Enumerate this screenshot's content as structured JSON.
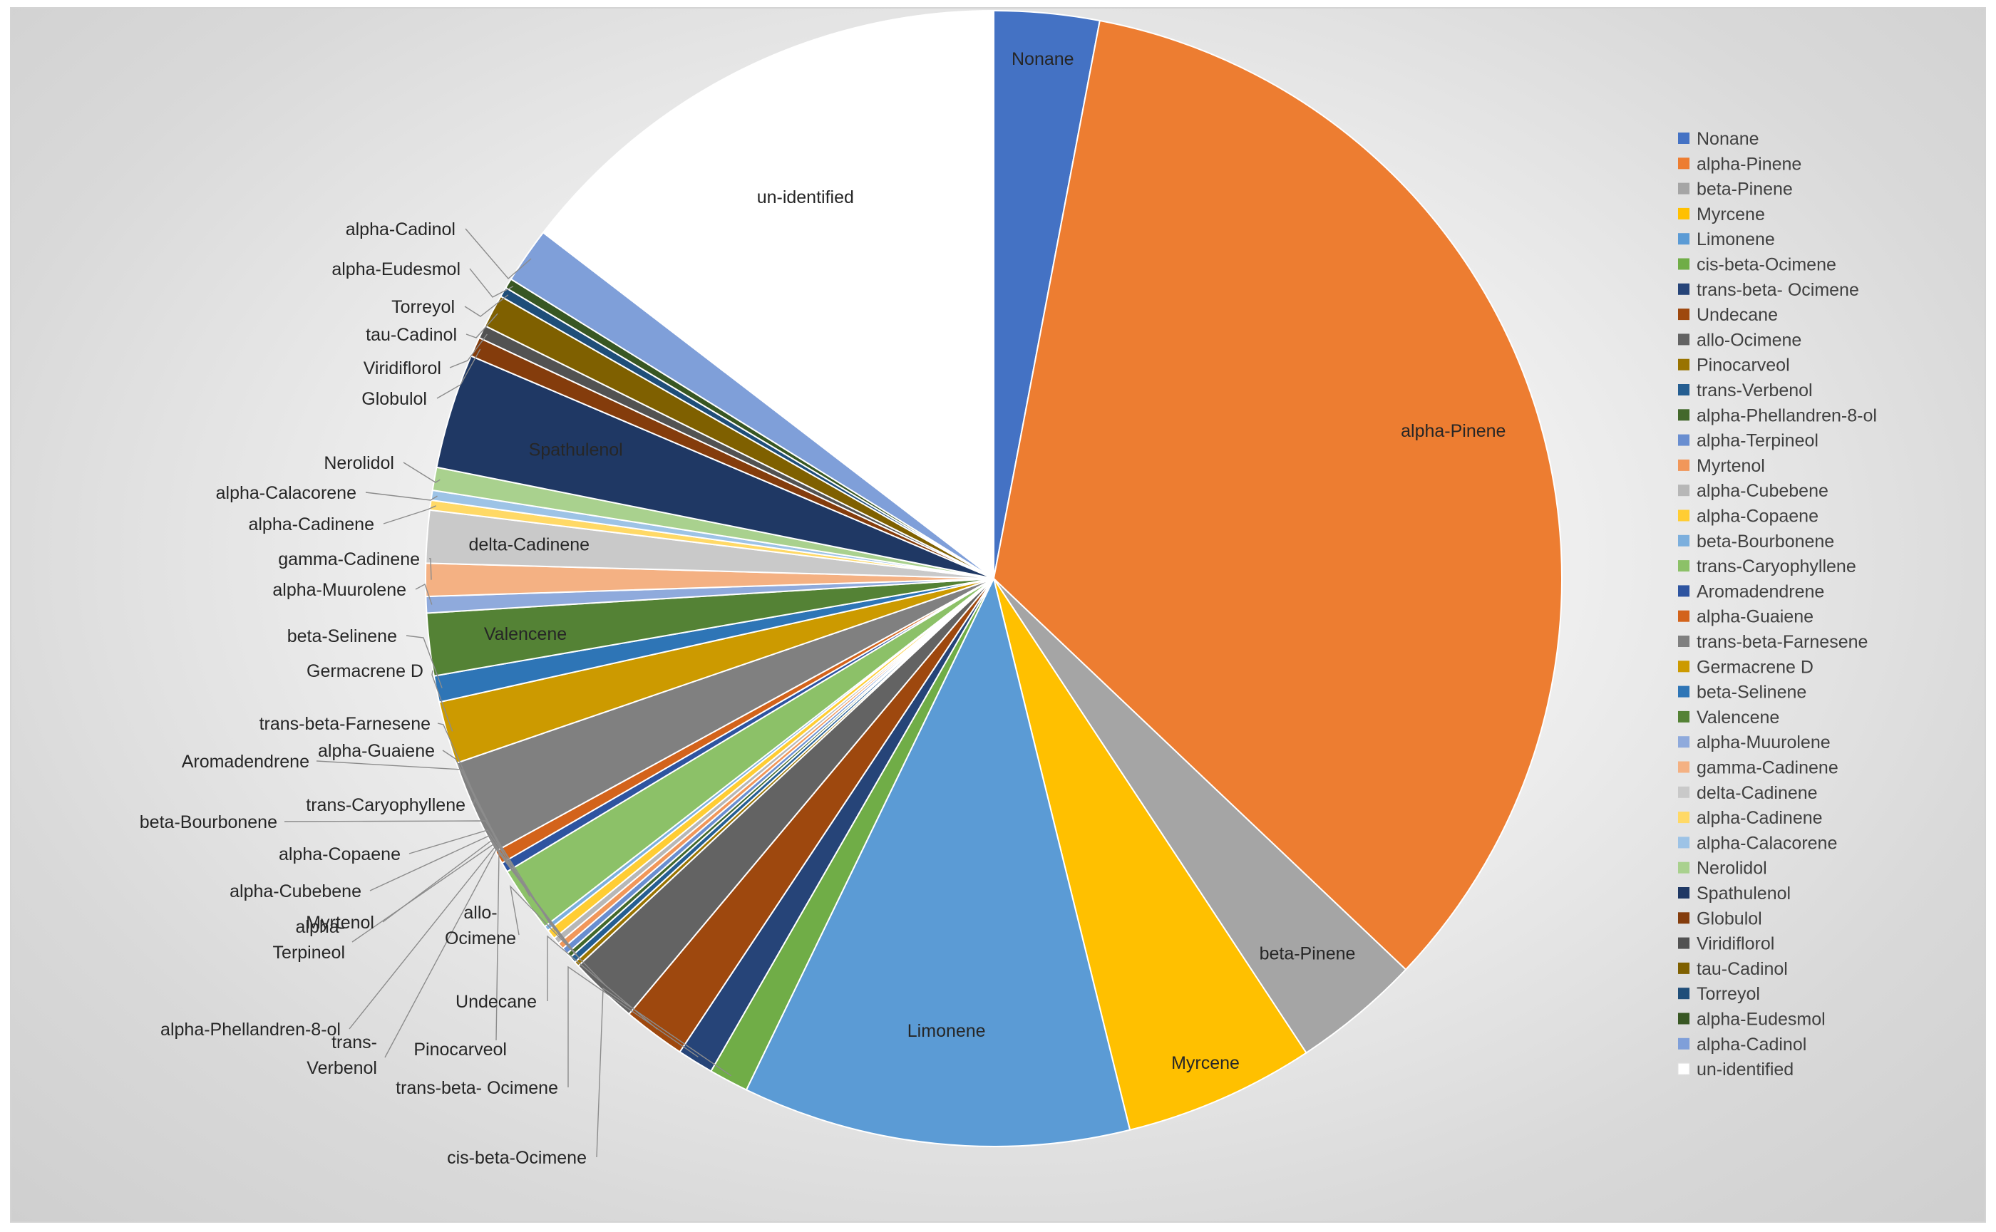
{
  "chart_data": {
    "type": "pie",
    "title": "",
    "start_angle_deg": 0,
    "direction": "clockwise",
    "legend_position": "right",
    "slices": [
      {
        "label": "Nonane",
        "value": 3.2,
        "color": "#4472C4"
      },
      {
        "label": "alpha-Pinene",
        "value": 36.5,
        "color": "#ED7D31"
      },
      {
        "label": "beta-Pinene",
        "value": 3.9,
        "color": "#A5A5A5"
      },
      {
        "label": "Myrcene",
        "value": 5.8,
        "color": "#FFC000"
      },
      {
        "label": "Limonene",
        "value": 11.8,
        "color": "#5B9BD5"
      },
      {
        "label": "cis-beta-Ocimene",
        "value": 1.2,
        "color": "#70AD47"
      },
      {
        "label": "trans-beta- Ocimene",
        "value": 1.1,
        "color": "#264478"
      },
      {
        "label": "Undecane",
        "value": 1.9,
        "color": "#9E480E"
      },
      {
        "label": "allo-Ocimene",
        "value": 2.1,
        "color": "#636363"
      },
      {
        "label": "Pinocarveol",
        "value": 0.15,
        "color": "#997300"
      },
      {
        "label": "trans-Verbenol",
        "value": 0.2,
        "color": "#255E91"
      },
      {
        "label": "alpha-Phellandren-8-ol",
        "value": 0.15,
        "color": "#43682B"
      },
      {
        "label": "alpha-Terpineol",
        "value": 0.2,
        "color": "#698ED0"
      },
      {
        "label": "Myrtenol",
        "value": 0.2,
        "color": "#F1975A"
      },
      {
        "label": "alpha-Cubebene",
        "value": 0.2,
        "color": "#B7B7B7"
      },
      {
        "label": "alpha-Copaene",
        "value": 0.3,
        "color": "#FFCD33"
      },
      {
        "label": "beta-Bourbonene",
        "value": 0.15,
        "color": "#7CAFDD"
      },
      {
        "label": "trans-Caryophyllene",
        "value": 2.0,
        "color": "#8CC168"
      },
      {
        "label": "Aromadendrene",
        "value": 0.3,
        "color": "#2E54A0"
      },
      {
        "label": "alpha-Guaiene",
        "value": 0.4,
        "color": "#D3631B"
      },
      {
        "label": "trans-beta-Farnesene",
        "value": 2.9,
        "color": "#808080"
      },
      {
        "label": "Germacrene D",
        "value": 1.9,
        "color": "#CC9A00"
      },
      {
        "label": "beta-Selinene",
        "value": 0.8,
        "color": "#2E75B6"
      },
      {
        "label": "Valencene",
        "value": 1.9,
        "color": "#548235"
      },
      {
        "label": "alpha-Muurolene",
        "value": 0.5,
        "color": "#8FAADC"
      },
      {
        "label": "gamma-Cadinene",
        "value": 1.0,
        "color": "#F4B183"
      },
      {
        "label": "delta-Cadinene",
        "value": 1.6,
        "color": "#C9C9C9"
      },
      {
        "label": "alpha-Cadinene",
        "value": 0.3,
        "color": "#FFD966"
      },
      {
        "label": "alpha-Calacorene",
        "value": 0.3,
        "color": "#9DC3E6"
      },
      {
        "label": "Nerolidol",
        "value": 0.7,
        "color": "#A9D18E"
      },
      {
        "label": "Spathulenol",
        "value": 3.5,
        "color": "#1F3864"
      },
      {
        "label": "Globulol",
        "value": 0.6,
        "color": "#843C0C"
      },
      {
        "label": "Viridiflorol",
        "value": 0.4,
        "color": "#525252"
      },
      {
        "label": "tau-Cadinol",
        "value": 1.0,
        "color": "#7F6000"
      },
      {
        "label": "Torreyol",
        "value": 0.3,
        "color": "#1F4E79"
      },
      {
        "label": "alpha-Eudesmol",
        "value": 0.3,
        "color": "#385723"
      },
      {
        "label": "alpha-Cadinol",
        "value": 1.7,
        "color": "#7F9FD9"
      },
      {
        "label": "un-identified",
        "value": 15.6,
        "color": "#FFFFFF"
      }
    ]
  }
}
